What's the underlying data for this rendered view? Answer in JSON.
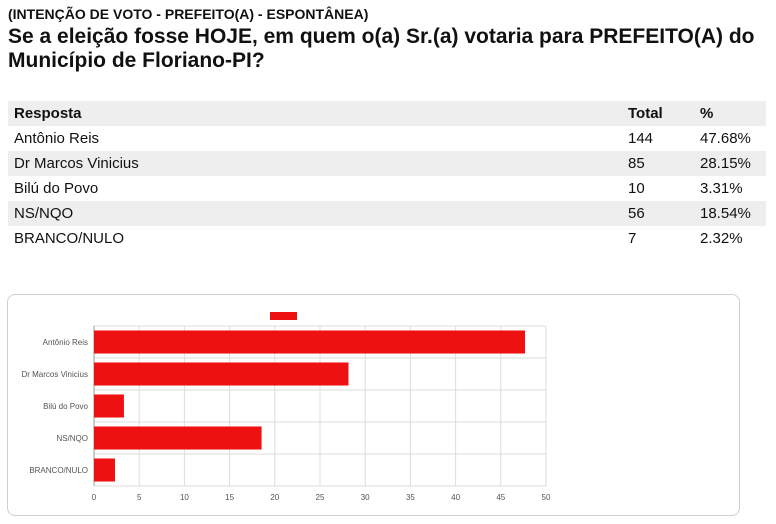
{
  "header": {
    "subtitle": "(INTENÇÃO DE VOTO - PREFEITO(A) - ESPONTÂNEA)",
    "title": "Se a eleição fosse HOJE, em quem o(a) Sr.(a) votaria para PREFEITO(A) do Município de Floriano-PI?"
  },
  "table": {
    "headers": [
      "Resposta",
      "Total",
      "%"
    ],
    "rows": [
      [
        "Antônio Reis",
        "144",
        "47.68%"
      ],
      [
        "Dr Marcos Vinicius",
        "85",
        "28.15%"
      ],
      [
        "Bilú do Povo",
        "10",
        "3.31%"
      ],
      [
        "NS/NQO",
        "56",
        "18.54%"
      ],
      [
        "BRANCO/NULO",
        "7",
        "2.32%"
      ]
    ]
  },
  "chart_data": {
    "type": "bar",
    "orientation": "horizontal",
    "categories": [
      "Antônio Reis",
      "Dr Marcos Vinicius",
      "Bilú do Povo",
      "NS/NQO",
      "BRANCO/NULO"
    ],
    "values": [
      47.68,
      28.15,
      3.31,
      18.54,
      2.32
    ],
    "xlim": [
      0,
      50
    ],
    "xticks": [
      0,
      5,
      10,
      15,
      20,
      25,
      30,
      35,
      40,
      45,
      50
    ],
    "grid": true,
    "legend": "top-center",
    "bar_color": "#ee1111"
  }
}
